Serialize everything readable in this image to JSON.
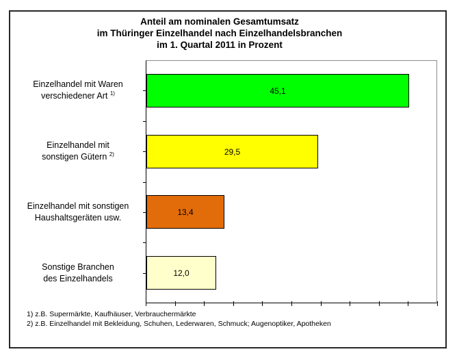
{
  "window": {
    "background": "#FFFFFF",
    "border_color": "#262626"
  },
  "title": {
    "lines": [
      "Anteil am nominalen Gesamtumsatz",
      "im Thüringer Einzelhandel nach Einzelhandelsbranchen",
      "im 1. Quartal 2011 in Prozent"
    ]
  },
  "chart_data": {
    "type": "bar",
    "orientation": "horizontal",
    "title": "Anteil am nominalen Gesamtumsatz im Thüringer Einzelhandel nach Einzelhandelsbranchen im 1. Quartal 2011 in Prozent",
    "categories": [
      {
        "lines": [
          "Einzelhandel mit Waren",
          "verschiedener Art"
        ],
        "footnote_ref": "1)"
      },
      {
        "lines": [
          "Einzelhandel mit",
          "sonstigen Gütern"
        ],
        "footnote_ref": "2)"
      },
      {
        "lines": [
          "Einzelhandel mit sonstigen",
          "Haushaltsgeräten usw."
        ],
        "footnote_ref": ""
      },
      {
        "lines": [
          "Sonstige Branchen",
          "des Einzelhandels"
        ],
        "footnote_ref": ""
      }
    ],
    "values": [
      45.1,
      29.5,
      13.4,
      12.0
    ],
    "value_labels": [
      "45,1",
      "29,5",
      "13,4",
      "12,0"
    ],
    "bar_colors": [
      "#00FF00",
      "#FFFF00",
      "#E36C0A",
      "#FFFFCC"
    ],
    "bar_border_color": "#000000",
    "xlabel": "",
    "ylabel": "",
    "xlim": [
      0,
      50
    ],
    "x_tick_interval": 5,
    "x_tick_labels_visible": false,
    "grid": false,
    "legend": false
  },
  "footnotes": [
    "1) z.B. Supermärkte, Kaufhäuser, Verbrauchermärkte",
    "2) z.B. Einzelhandel mit Bekleidung, Schuhen, Lederwaren, Schmuck; Augenoptiker, Apotheken"
  ]
}
